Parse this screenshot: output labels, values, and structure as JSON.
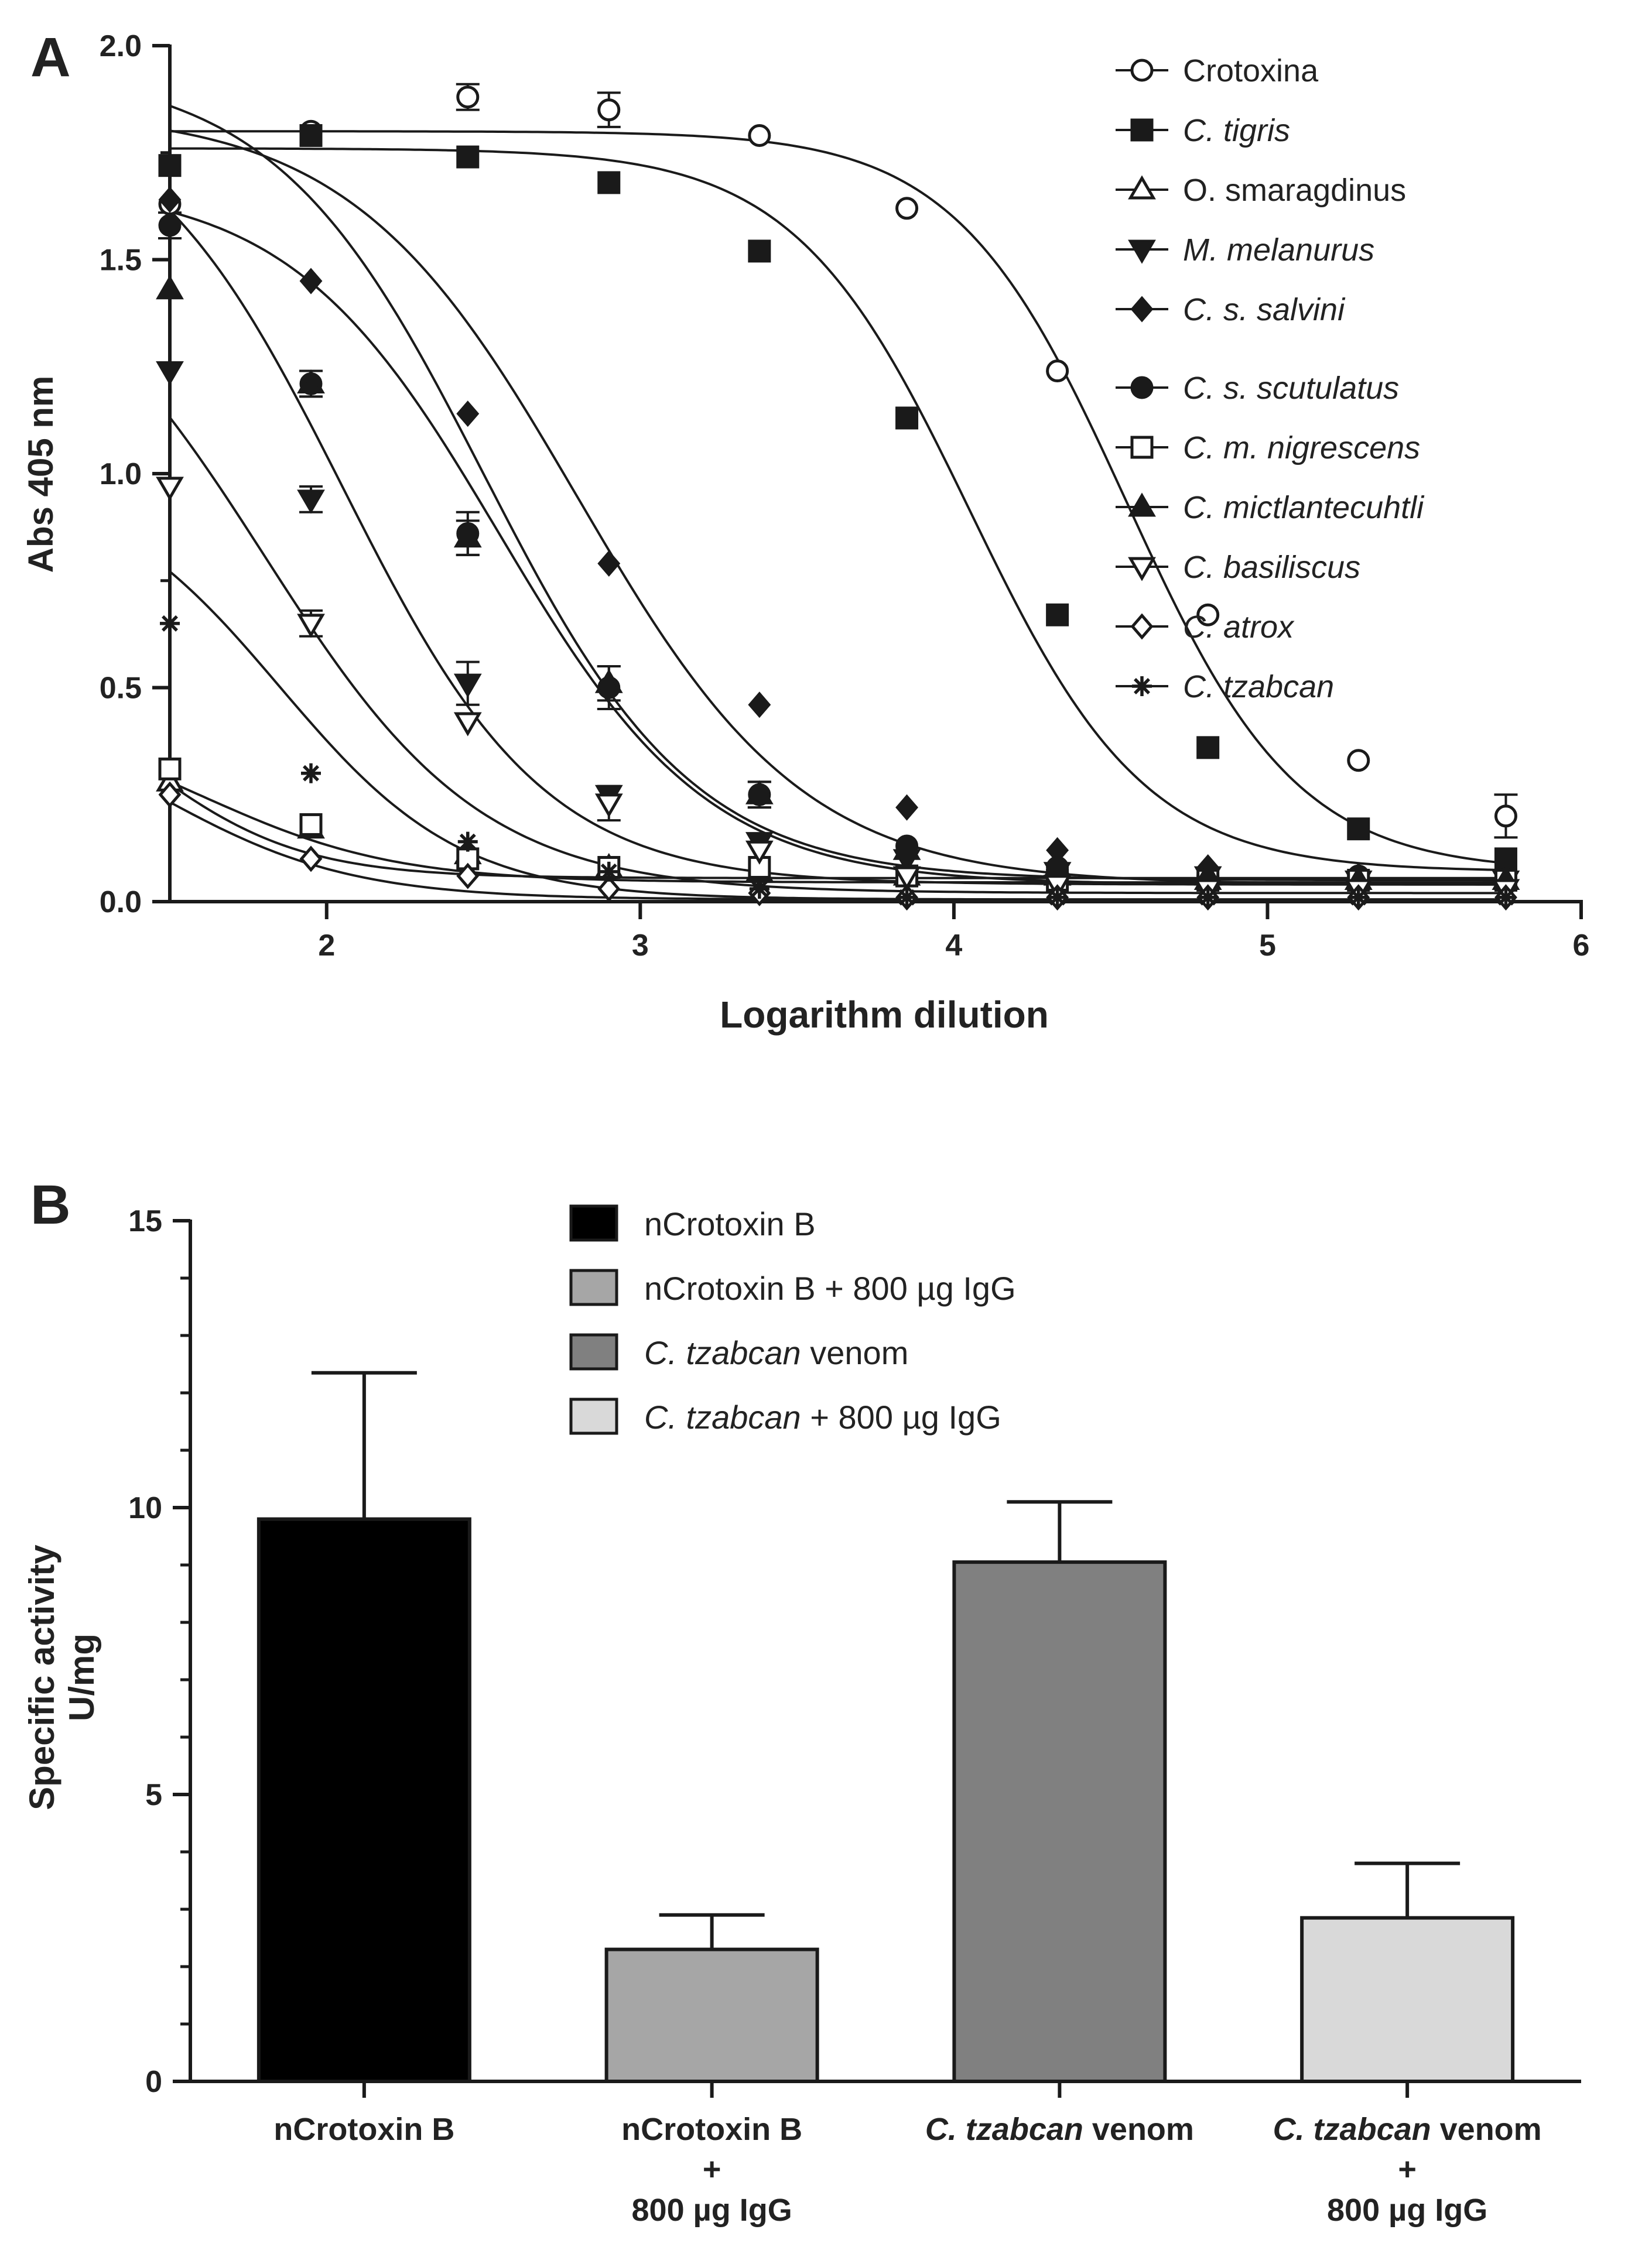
{
  "panel_a_label": "A",
  "panel_b_label": "B",
  "chart_data": [
    {
      "type": "line",
      "panel": "A",
      "xlabel": "Logarithm dilution",
      "ylabel": "Abs 405 nm",
      "xlim": [
        1.5,
        6
      ],
      "ylim": [
        0,
        2.0
      ],
      "xticks": [
        2,
        3,
        4,
        5,
        6
      ],
      "yticks": [
        0.0,
        0.5,
        1.0,
        1.5,
        2.0
      ],
      "ytick_labels": [
        "0.0",
        "0.5",
        "1.0",
        "1.5",
        "2.0"
      ],
      "legend_placement": "top-right",
      "x": [
        1.5,
        1.95,
        2.45,
        2.9,
        3.38,
        3.85,
        4.33,
        4.81,
        5.29,
        5.76
      ],
      "series": [
        {
          "name": "Crotoxina",
          "italic": false,
          "marker": "circle-open",
          "values": [
            1.63,
            1.8,
            1.88,
            1.85,
            1.79,
            1.62,
            1.24,
            0.67,
            0.33,
            0.2
          ],
          "errors": [
            0,
            0,
            0.03,
            0.04,
            0,
            0,
            0,
            0,
            0,
            0.05
          ],
          "fit": {
            "top": 1.8,
            "bottom": 0.07,
            "logec50": 4.55,
            "hill": 1.6
          }
        },
        {
          "name": "C. tigris",
          "italic": true,
          "marker": "square-filled",
          "values": [
            1.72,
            1.79,
            1.74,
            1.68,
            1.52,
            1.13,
            0.67,
            0.36,
            0.17,
            0.1
          ],
          "errors": [
            0,
            0,
            0,
            0,
            0,
            0,
            0,
            0,
            0,
            0
          ],
          "fit": {
            "top": 1.76,
            "bottom": 0.07,
            "logec50": 4.05,
            "hill": 1.55
          }
        },
        {
          "name": "O. smaragdinus",
          "italic": false,
          "marker": "triangle-open",
          "values": [
            0.28,
            0.17,
            0.11,
            0.08,
            0.07,
            0.06,
            0.06,
            0.05,
            0.05,
            0.05
          ],
          "errors": [
            0,
            0,
            0,
            0,
            0,
            0,
            0,
            0,
            0,
            0
          ],
          "fit": {
            "top": 0.45,
            "bottom": 0.045,
            "logec50": 1.6,
            "hill": 1.4
          }
        },
        {
          "name": "M. melanurus",
          "italic": true,
          "marker": "triangle-down-filled",
          "values": [
            1.24,
            0.94,
            0.51,
            0.25,
            0.14,
            0.1,
            0.07,
            0.06,
            0.05,
            0.05
          ],
          "errors": [
            0,
            0.03,
            0.05,
            0,
            0,
            0,
            0,
            0,
            0,
            0
          ],
          "fit": {
            "top": 1.9,
            "bottom": 0.04,
            "logec50": 2.05,
            "hill": 1.35
          }
        },
        {
          "name": "C. s. salvini",
          "italic": true,
          "marker": "diamond-filled",
          "values": [
            1.64,
            1.45,
            1.14,
            0.79,
            0.46,
            0.22,
            0.12,
            0.08,
            0.06,
            0.05
          ],
          "errors": [
            0,
            0,
            0,
            0,
            0,
            0,
            0,
            0,
            0,
            0
          ],
          "fit": {
            "top": 1.85,
            "bottom": 0.04,
            "logec50": 2.8,
            "hill": 1.2
          }
        },
        {
          "name": "C. s. scutulatus",
          "italic": true,
          "marker": "circle-filled",
          "values": [
            1.58,
            1.21,
            0.86,
            0.5,
            0.25,
            0.13,
            0.08,
            0.06,
            0.06,
            0.06
          ],
          "errors": [
            0.03,
            0.03,
            0.05,
            0.05,
            0.03,
            0,
            0,
            0,
            0,
            0
          ],
          "fit": {
            "top": 1.95,
            "bottom": 0.05,
            "logec50": 2.5,
            "hill": 1.3
          }
        },
        {
          "name": "C. m. nigrescens",
          "italic": true,
          "marker": "square-open",
          "values": [
            0.31,
            0.18,
            0.1,
            0.08,
            0.08,
            0.06,
            0.05,
            0.05,
            0.05,
            0.05
          ],
          "errors": [
            0,
            0,
            0,
            0,
            0,
            0,
            0,
            0,
            0,
            0
          ],
          "fit": {
            "top": 0.6,
            "bottom": 0.055,
            "logec50": 1.4,
            "hill": 1.7
          }
        },
        {
          "name": "C. mictlantecuhtli",
          "italic": true,
          "marker": "triangle-filled",
          "values": [
            1.43,
            1.21,
            0.85,
            0.51,
            0.25,
            0.12,
            0.08,
            0.06,
            0.05,
            0.05
          ],
          "errors": [
            0,
            0.03,
            0.04,
            0.04,
            0.03,
            0,
            0,
            0,
            0,
            0
          ],
          "fit": {
            "top": 1.68,
            "bottom": 0.04,
            "logec50": 2.55,
            "hill": 1.3
          }
        },
        {
          "name": "C. basiliscus",
          "italic": true,
          "marker": "triangle-down-open",
          "values": [
            0.97,
            0.65,
            0.42,
            0.23,
            0.12,
            0.06,
            0.04,
            0.03,
            0.03,
            0.03
          ],
          "errors": [
            0,
            0.03,
            0,
            0.04,
            0,
            0,
            0,
            0,
            0,
            0
          ],
          "fit": {
            "top": 1.6,
            "bottom": 0.02,
            "logec50": 1.8,
            "hill": 1.25
          }
        },
        {
          "name": "C. atrox",
          "italic": true,
          "marker": "diamond-open",
          "values": [
            0.25,
            0.1,
            0.06,
            0.03,
            0.02,
            0.01,
            0.01,
            0.01,
            0.01,
            0.01
          ],
          "errors": [
            0,
            0,
            0,
            0,
            0,
            0,
            0,
            0,
            0,
            0
          ],
          "fit": {
            "top": 0.5,
            "bottom": 0.005,
            "logec50": 1.45,
            "hill": 1.4
          }
        },
        {
          "name": "C. tzabcan",
          "italic": true,
          "marker": "asterisk",
          "values": [
            0.65,
            0.3,
            0.14,
            0.07,
            0.03,
            0.01,
            0.01,
            0.01,
            0.01,
            0.01
          ],
          "errors": [
            0,
            0,
            0,
            0,
            0,
            0,
            0,
            0,
            0,
            0
          ],
          "fit": {
            "top": 1.0,
            "bottom": 0.005,
            "logec50": 1.85,
            "hill": 1.5
          }
        }
      ]
    },
    {
      "type": "bar",
      "panel": "B",
      "xlabel": "",
      "ylabel": "Specific activity",
      "ylabel_unit": "U/mg",
      "ylim": [
        0,
        15
      ],
      "yticks": [
        0,
        5,
        10,
        15
      ],
      "legend_placement": "top-center",
      "categories": [
        {
          "parts": [
            {
              "text": "nCrotoxin B",
              "italic": false
            }
          ],
          "line2": "",
          "line3": ""
        },
        {
          "parts": [
            {
              "text": "nCrotoxin B",
              "italic": false
            }
          ],
          "line2": "+",
          "line3": "800 µg IgG"
        },
        {
          "parts": [
            {
              "text": "C. tzabcan",
              "italic": true
            },
            {
              "text": " venom",
              "italic": false
            }
          ],
          "line2": "",
          "line3": ""
        },
        {
          "parts": [
            {
              "text": "C. tzabcan",
              "italic": true
            },
            {
              "text": " venom",
              "italic": false
            }
          ],
          "line2": "+",
          "line3": "800 µg IgG"
        }
      ],
      "values": [
        9.8,
        2.3,
        9.05,
        2.85
      ],
      "errors": [
        2.55,
        0.6,
        1.05,
        0.95
      ],
      "colors": [
        "#000000",
        "#a6a6a6",
        "#808080",
        "#d9d9d9"
      ],
      "legend": [
        {
          "color": "#000000",
          "parts": [
            {
              "text": "nCrotoxin B",
              "italic": false
            }
          ]
        },
        {
          "color": "#a6a6a6",
          "parts": [
            {
              "text": "nCrotoxin B + 800 µg IgG",
              "italic": false
            }
          ]
        },
        {
          "color": "#808080",
          "parts": [
            {
              "text": "C. tzabcan",
              "italic": true
            },
            {
              "text": " venom",
              "italic": false
            }
          ]
        },
        {
          "color": "#d9d9d9",
          "parts": [
            {
              "text": "C. tzabcan",
              "italic": true
            },
            {
              "text": " + 800 µg IgG",
              "italic": false
            }
          ]
        }
      ]
    }
  ]
}
